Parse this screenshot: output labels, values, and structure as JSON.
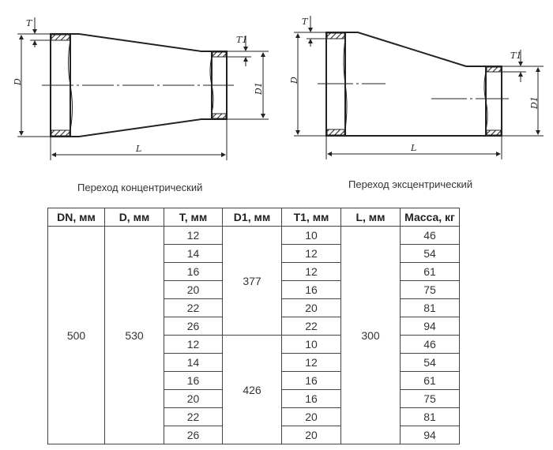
{
  "drawings": {
    "concentric": {
      "caption": "Переход концентрический",
      "labels": {
        "D": "D",
        "T": "T",
        "D1": "D1",
        "T1": "T1",
        "L": "L"
      }
    },
    "eccentric": {
      "caption": "Переход эксцентрический",
      "labels": {
        "D": "D",
        "T": "T",
        "D1": "D1",
        "T1": "T1",
        "L": "L"
      }
    }
  },
  "table": {
    "headers": [
      "DN, мм",
      "D, мм",
      "T, мм",
      "D1, мм",
      "T1, мм",
      "L, мм",
      "Масса, кг"
    ],
    "DN": "500",
    "D": "530",
    "L": "300",
    "D1_groups": [
      "377",
      "426"
    ],
    "rows": [
      {
        "T": "12",
        "T1": "10",
        "mass": "46"
      },
      {
        "T": "14",
        "T1": "12",
        "mass": "54"
      },
      {
        "T": "16",
        "T1": "12",
        "mass": "61"
      },
      {
        "T": "20",
        "T1": "16",
        "mass": "75"
      },
      {
        "T": "22",
        "T1": "20",
        "mass": "81"
      },
      {
        "T": "26",
        "T1": "22",
        "mass": "94"
      },
      {
        "T": "12",
        "T1": "10",
        "mass": "46"
      },
      {
        "T": "14",
        "T1": "12",
        "mass": "54"
      },
      {
        "T": "16",
        "T1": "16",
        "mass": "61"
      },
      {
        "T": "20",
        "T1": "16",
        "mass": "75"
      },
      {
        "T": "22",
        "T1": "20",
        "mass": "81"
      },
      {
        "T": "26",
        "T1": "20",
        "mass": "94"
      }
    ]
  }
}
